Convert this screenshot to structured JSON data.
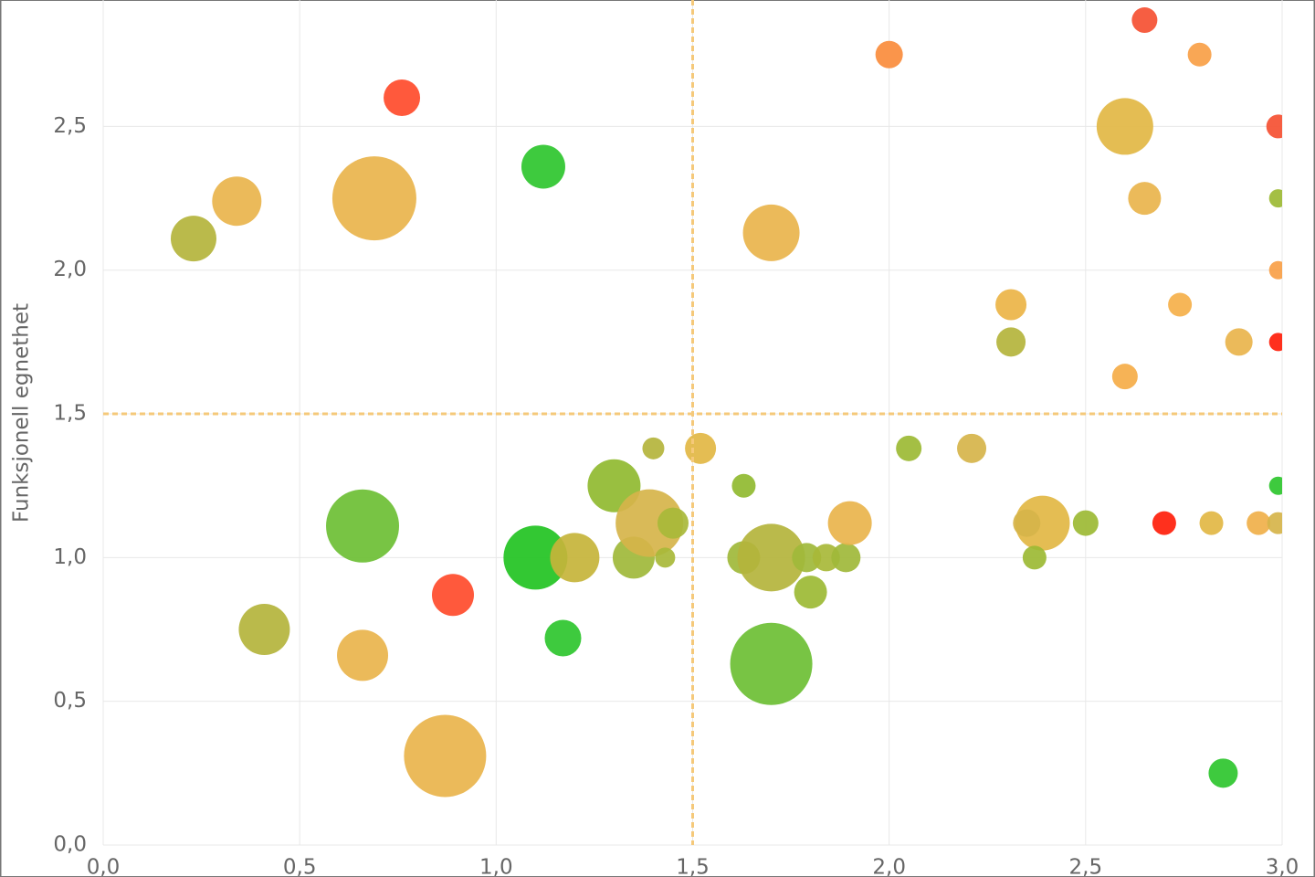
{
  "chart_data": {
    "type": "bubble",
    "y_label": "Funksjonell egnethet",
    "x": [
      0.76,
      0.34,
      0.23,
      0.69,
      1.12,
      1.7,
      2.0,
      2.65,
      2.79,
      2.6,
      2.99,
      2.65,
      2.99,
      2.99,
      2.31,
      2.74,
      2.31,
      2.89,
      2.99,
      2.6,
      0.66,
      0.41,
      0.66,
      0.89,
      0.87,
      1.1,
      1.2,
      1.17,
      1.3,
      1.35,
      1.39,
      1.4,
      1.45,
      1.43,
      1.52,
      1.63,
      1.63,
      1.7,
      1.7,
      1.79,
      1.84,
      1.89,
      1.8,
      1.9,
      2.05,
      2.21,
      2.39,
      2.35,
      2.37,
      2.5,
      2.7,
      2.82,
      2.94,
      2.99,
      2.99,
      2.85
    ],
    "y": [
      2.6,
      2.24,
      2.11,
      2.25,
      2.36,
      2.13,
      2.75,
      2.87,
      2.75,
      2.5,
      2.5,
      2.25,
      2.25,
      2.0,
      1.88,
      1.88,
      1.75,
      1.75,
      1.75,
      1.63,
      1.11,
      0.75,
      0.66,
      0.87,
      0.31,
      1.0,
      1.0,
      0.72,
      1.25,
      1.0,
      1.12,
      1.38,
      1.12,
      1.0,
      1.38,
      1.25,
      1.0,
      1.0,
      0.63,
      1.0,
      1.0,
      1.0,
      0.88,
      1.12,
      1.38,
      1.38,
      1.12,
      1.12,
      1.0,
      1.12,
      1.12,
      1.12,
      1.12,
      1.12,
      1.25,
      0.25
    ],
    "sizes": [
      20,
      27,
      25,
      46,
      24,
      31,
      15,
      14,
      13,
      31,
      13,
      18,
      10,
      10,
      17,
      13,
      16,
      15,
      10,
      14,
      40,
      28,
      28,
      23,
      45,
      35,
      27,
      20,
      29,
      23,
      37,
      12,
      17,
      11,
      17,
      13,
      18,
      37,
      45,
      16,
      15,
      16,
      18,
      24,
      14,
      16,
      30,
      15,
      13,
      14,
      13,
      13,
      13,
      12,
      10,
      16
    ],
    "colors": [
      "#ff4b2b",
      "#e9b44c",
      "#b4b43c",
      "#e9b44c",
      "#2ec52e",
      "#e9b44c",
      "#fa8c3c",
      "#f55032",
      "#f9a046",
      "#e2b744",
      "#f55032",
      "#e9b44c",
      "#9cba34",
      "#f9a046",
      "#ebb446",
      "#f5b04a",
      "#b4b43c",
      "#e9b44c",
      "#ff1e0a",
      "#f5ac48",
      "#6cbf34",
      "#b4b43c",
      "#e9b44c",
      "#ff4b2b",
      "#e9b44c",
      "#22c322",
      "#c5b43a",
      "#2ec52e",
      "#90ba30",
      "#a0b83a",
      "#d6b44a",
      "#b4b43c",
      "#a8b838",
      "#a8b838",
      "#e2b744",
      "#90ba30",
      "#a0b83a",
      "#b4b43c",
      "#6cbf34",
      "#a0b83a",
      "#a8b838",
      "#a0b83a",
      "#9cba34",
      "#e9b44c",
      "#9cba34",
      "#d6b44a",
      "#e2b744",
      "#d6b44a",
      "#9cba34",
      "#9cba34",
      "#ff1e0a",
      "#e2b744",
      "#f0b04a",
      "#d6b44a",
      "#2ec52e",
      "#2ec52e"
    ],
    "reference_lines": {
      "x": 1.5,
      "y": 1.5,
      "color": "#f5c97a"
    },
    "xlim": [
      0,
      3
    ],
    "ylim": [
      0,
      2.94
    ],
    "xticks": [
      {
        "value": 0,
        "label": "0,0"
      },
      {
        "value": 0.5,
        "label": "0,5"
      },
      {
        "value": 1,
        "label": "1,0"
      },
      {
        "value": 1.5,
        "label": "1,5"
      },
      {
        "value": 2,
        "label": "2,0"
      },
      {
        "value": 2.5,
        "label": "2,5"
      },
      {
        "value": 3,
        "label": "3,0"
      }
    ],
    "yticks": [
      {
        "value": 0,
        "label": "0,0"
      },
      {
        "value": 0.5,
        "label": "0,5"
      },
      {
        "value": 1,
        "label": "1,0"
      },
      {
        "value": 1.5,
        "label": "1,5"
      },
      {
        "value": 2,
        "label": "2,0"
      },
      {
        "value": 2.5,
        "label": "2,5"
      }
    ],
    "grid": true
  }
}
